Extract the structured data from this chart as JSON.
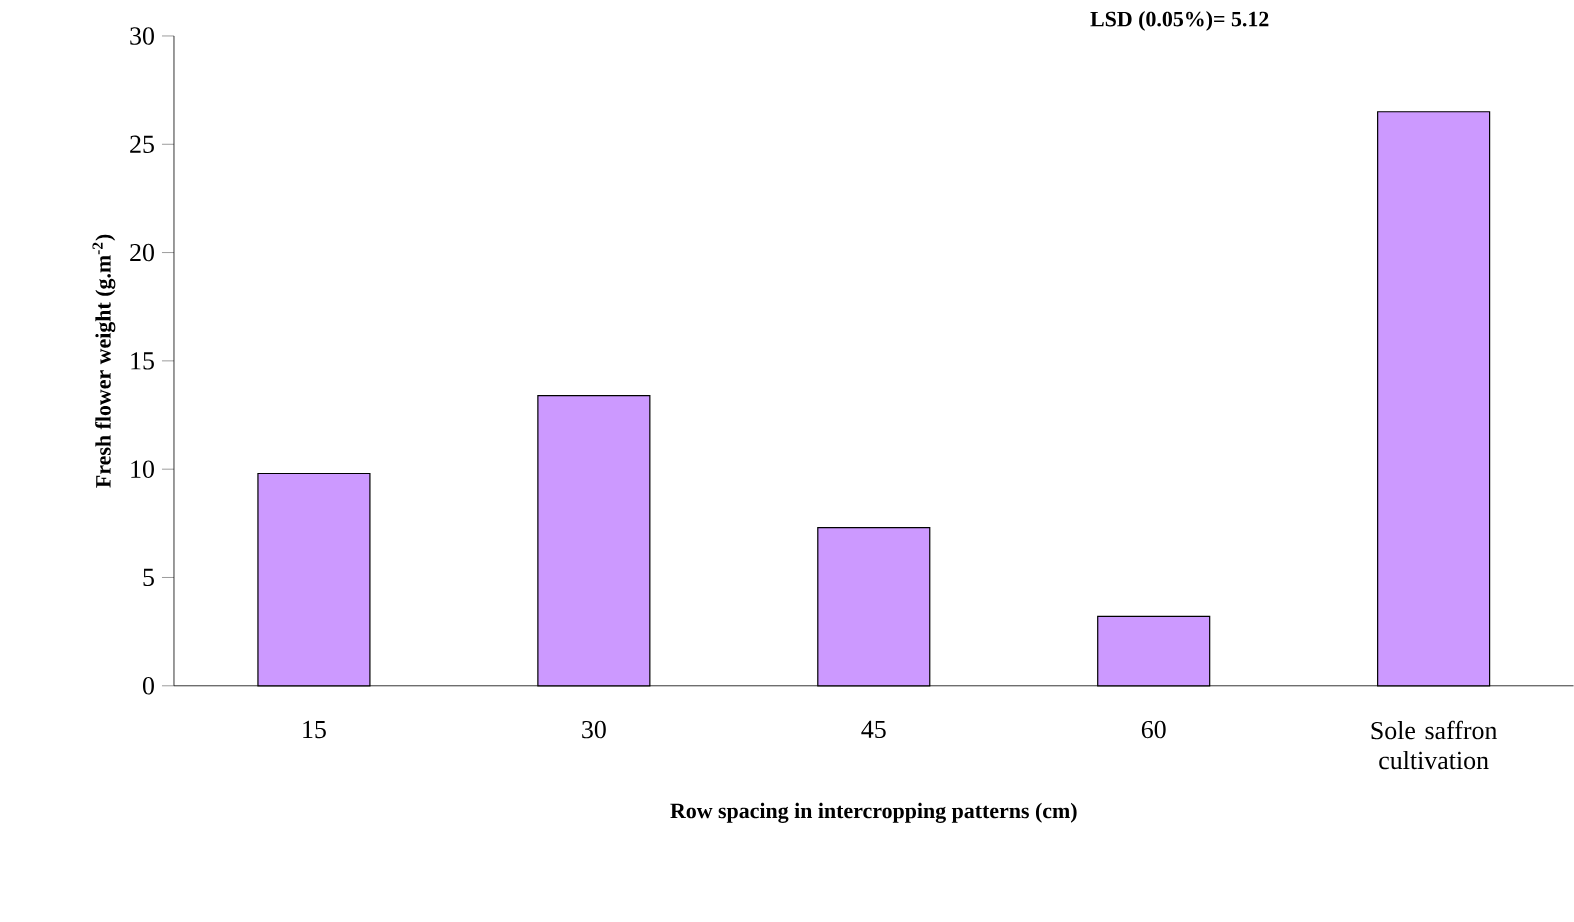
{
  "chart_data": {
    "type": "bar",
    "xlabel": "Row spacing in intercropping patterns (cm)",
    "ylabel": "Fresh flower weight (g.m$^{-2}$)",
    "annotations": [
      "LSD (0.05%)= 5.12"
    ],
    "categories": [
      "15",
      "30",
      "45",
      "60",
      "Sole saffron cultivation"
    ],
    "values": [
      9.8,
      13.4,
      7.3,
      3.2,
      26.5
    ],
    "color": "#cc99ff",
    "ylim": [
      0,
      30
    ],
    "yticks": [
      0,
      5,
      10,
      15,
      20,
      25,
      30
    ],
    "grid": false
  }
}
